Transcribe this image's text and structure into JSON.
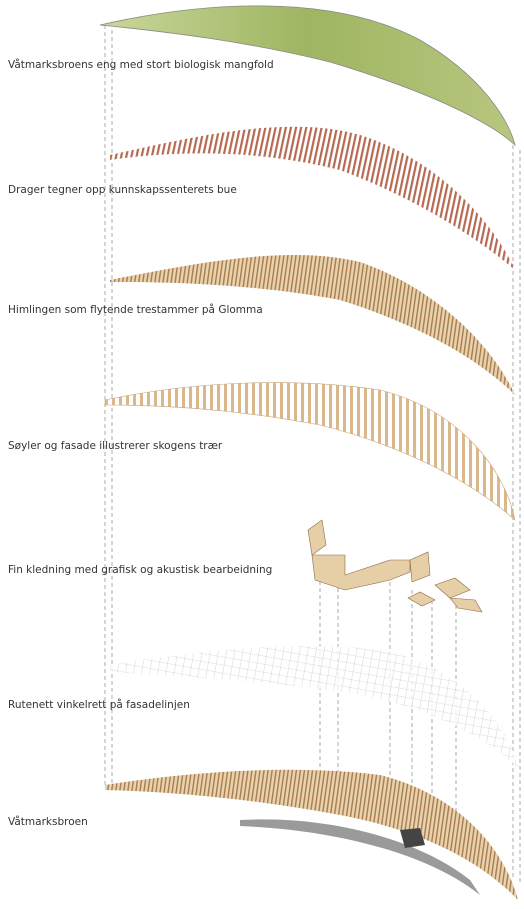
{
  "layers": [
    {
      "label": "Våtmarksbroens eng med stort biologisk mangfold"
    },
    {
      "label": "Drager tegner opp kunnskapssenterets bue"
    },
    {
      "label": "Himlingen som flytende trestammer på Glomma"
    },
    {
      "label": "Søyler og fasade illustrerer skogens trær"
    },
    {
      "label": "Fin kledning med grafisk og akustisk bearbeidning"
    },
    {
      "label": "Rutenett vinkelrett på fasadelinjen"
    },
    {
      "label": "Våtmarksbroen"
    }
  ]
}
